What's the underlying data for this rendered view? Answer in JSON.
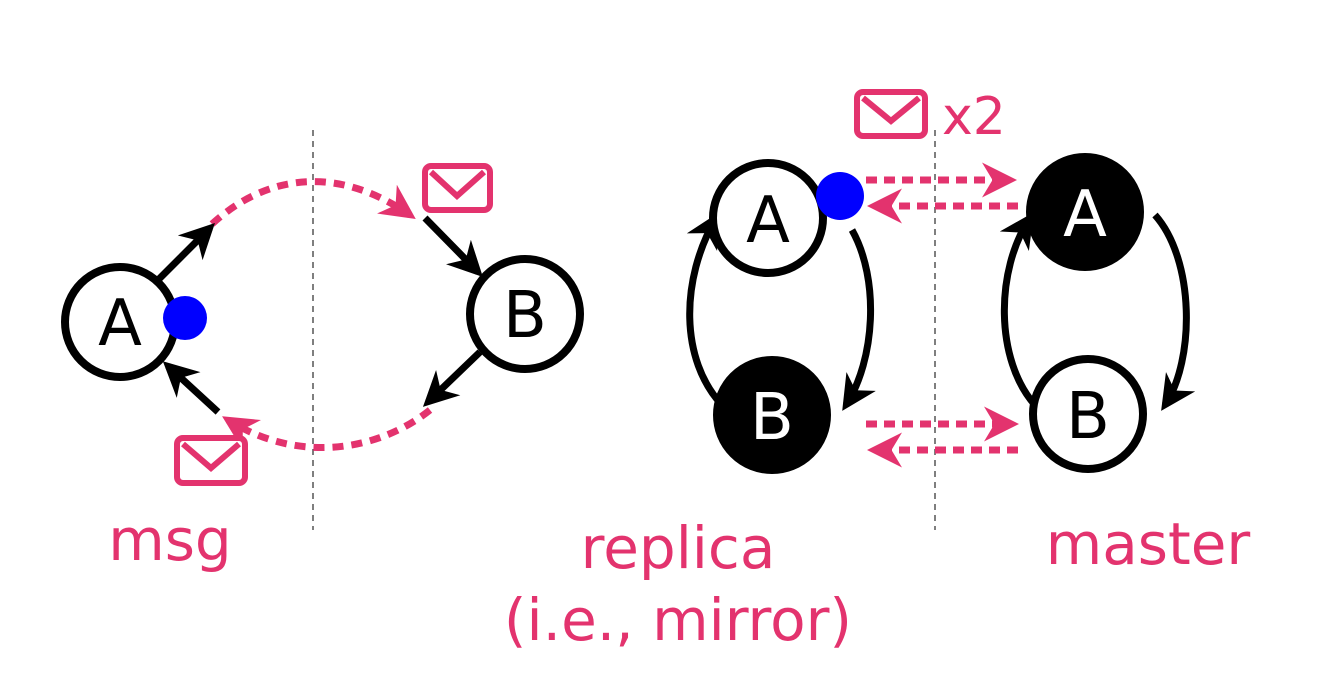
{
  "colors": {
    "accent": "#e3336e",
    "node_stroke": "#000000",
    "marker": "#0000ff",
    "divider": "#555555"
  },
  "left": {
    "node_a": "A",
    "node_b": "B",
    "caption": "msg"
  },
  "right": {
    "replica_a": "A",
    "replica_b": "B",
    "master_a": "A",
    "master_b": "B",
    "multiplier": "x2",
    "caption_replica_line1": "replica",
    "caption_replica_line2": "(i.e., mirror)",
    "caption_master": "master"
  },
  "icons": [
    "envelope-icon",
    "envelope-icon",
    "envelope-icon"
  ]
}
